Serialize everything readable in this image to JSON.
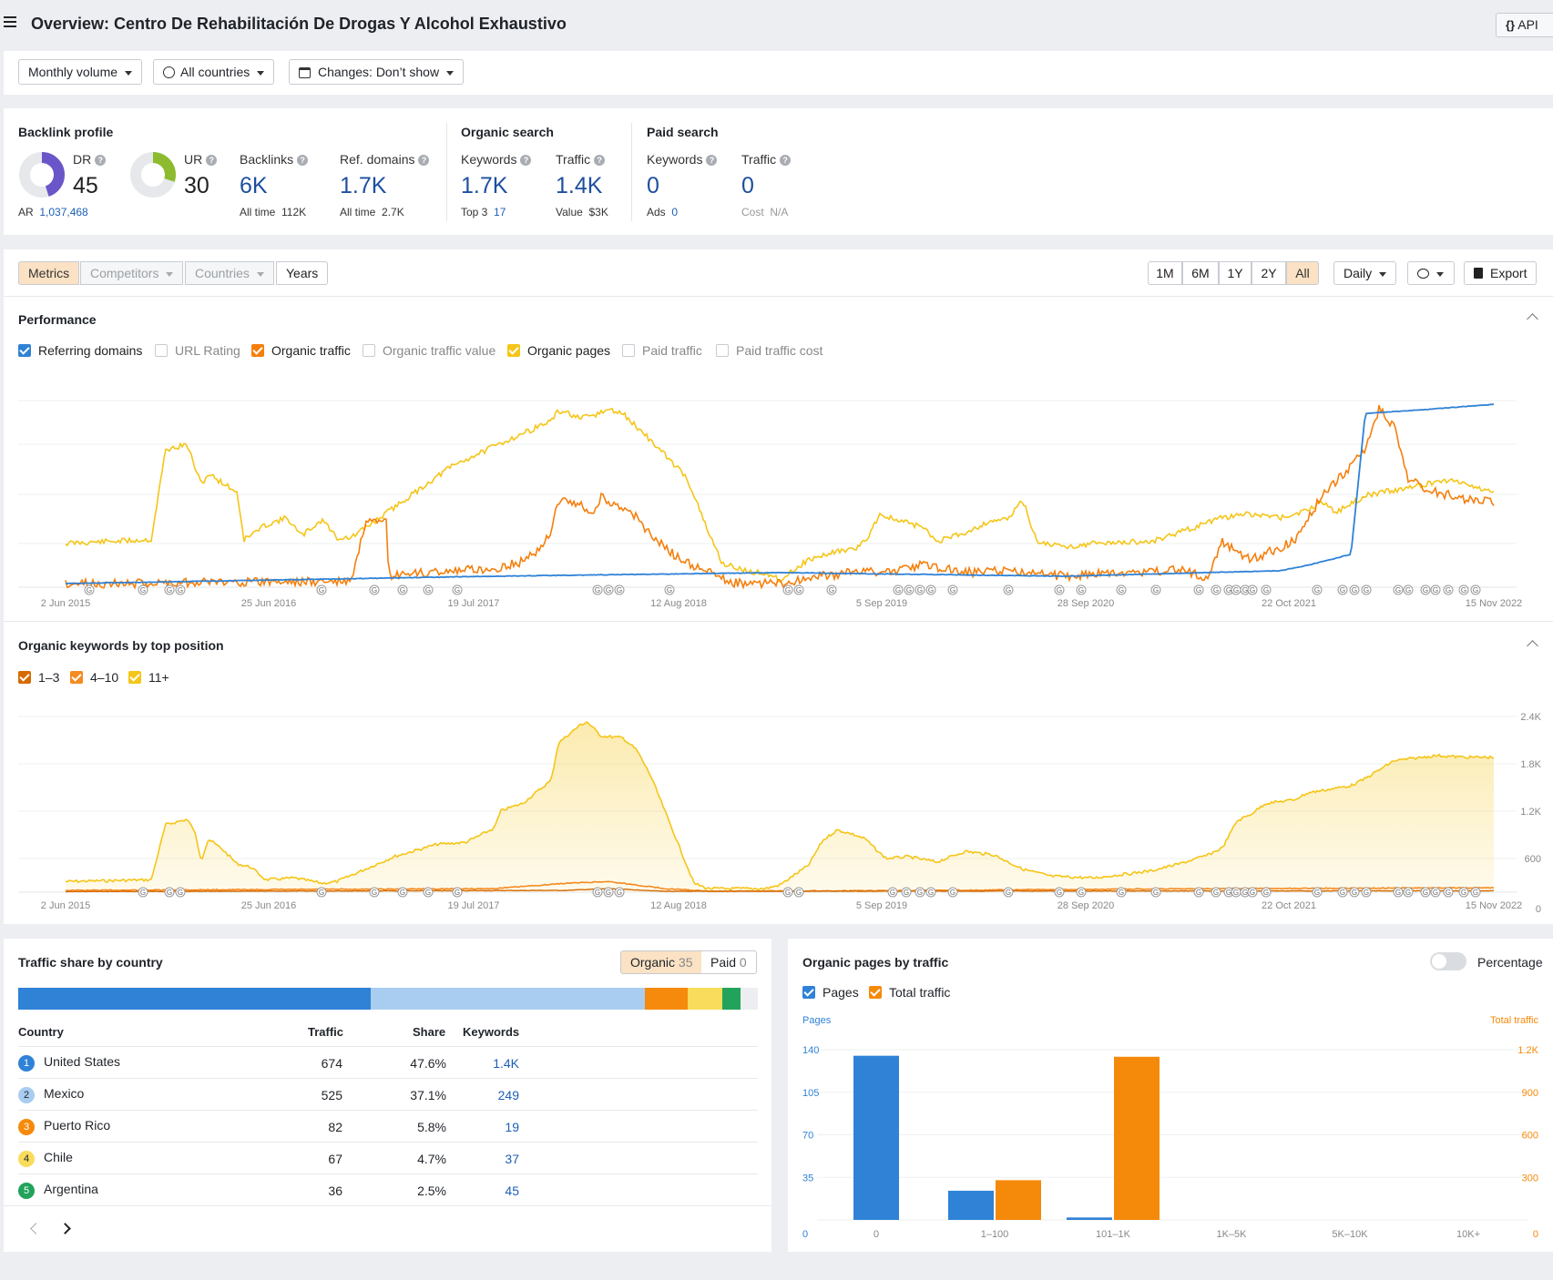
{
  "header": {
    "title": "Overview: Centro De Rehabilitación De Drogas Y Alcohol Exhaustivo",
    "api_label": "API"
  },
  "filters": {
    "volume": "Monthly volume",
    "countries": "All countries",
    "changes": "Changes: Don’t show"
  },
  "backlink_profile": {
    "title": "Backlink profile",
    "dr_label": "DR",
    "dr_value": "45",
    "dr_fill": 0.45,
    "ar_label": "AR",
    "ar_value": "1,037,468",
    "ur_label": "UR",
    "ur_value": "30",
    "ur_fill": 0.3,
    "backlinks_label": "Backlinks",
    "backlinks_value": "6K",
    "backlinks_alltime_label": "All time",
    "backlinks_alltime": "112K",
    "refdomains_label": "Ref. domains",
    "refdomains_value": "1.7K",
    "refdomains_alltime_label": "All time",
    "refdomains_alltime": "2.7K"
  },
  "organic_search": {
    "title": "Organic search",
    "keywords_label": "Keywords",
    "keywords_value": "1.7K",
    "top3_label": "Top 3",
    "top3_value": "17",
    "traffic_label": "Traffic",
    "traffic_value": "1.4K",
    "value_label": "Value",
    "value_value": "$3K"
  },
  "paid_search": {
    "title": "Paid search",
    "keywords_label": "Keywords",
    "keywords_value": "0",
    "ads_label": "Ads",
    "ads_value": "0",
    "traffic_label": "Traffic",
    "traffic_value": "0",
    "cost_label": "Cost",
    "cost_value": "N/A"
  },
  "tabs": {
    "metrics": "Metrics",
    "competitors": "Competitors",
    "countries": "Countries",
    "years": "Years",
    "ranges": [
      "1M",
      "6M",
      "1Y",
      "2Y",
      "All"
    ],
    "active_range": "All",
    "interval": "Daily",
    "export": "Export"
  },
  "performance": {
    "title": "Performance",
    "legend": [
      {
        "label": "Referring domains",
        "checked": true,
        "color": "#2f82d6"
      },
      {
        "label": "URL Rating",
        "checked": false,
        "color": ""
      },
      {
        "label": "Organic traffic",
        "checked": true,
        "color": "#f57f0c"
      },
      {
        "label": "Organic traffic value",
        "checked": false,
        "color": ""
      },
      {
        "label": "Organic pages",
        "checked": true,
        "color": "#f5c518"
      },
      {
        "label": "Paid traffic",
        "checked": false,
        "color": ""
      },
      {
        "label": "Paid traffic cost",
        "checked": false,
        "color": ""
      }
    ],
    "x_ticks": [
      "2 Jun 2015",
      "25 Jun 2016",
      "19 Jul 2017",
      "12 Aug 2018",
      "5 Sep 2019",
      "28 Sep 2020",
      "22 Oct 2021",
      "15 Nov 2022"
    ]
  },
  "keywords_chart": {
    "title": "Organic keywords by top position",
    "legend": [
      {
        "label": "1–3",
        "color": "#d66a00"
      },
      {
        "label": "4–10",
        "color": "#f58a1f"
      },
      {
        "label": "11+",
        "color": "#f5c518"
      }
    ],
    "y_ticks": [
      "2.4K",
      "1.8K",
      "1.2K",
      "600",
      "0"
    ],
    "x_ticks": [
      "2 Jun 2015",
      "25 Jun 2016",
      "19 Jul 2017",
      "12 Aug 2018",
      "5 Sep 2019",
      "28 Sep 2020",
      "22 Oct 2021",
      "15 Nov 2022"
    ]
  },
  "traffic_share": {
    "title": "Traffic share by country",
    "organic_label": "Organic",
    "organic_count": "35",
    "paid_label": "Paid",
    "paid_count": "0",
    "columns": [
      "Country",
      "Traffic",
      "Share",
      "Keywords"
    ],
    "rows": [
      {
        "rank": "1",
        "country": "United States",
        "traffic": "674",
        "share": "47.6%",
        "keywords": "1.4K",
        "color": "#2f82d6",
        "fraction": 0.476
      },
      {
        "rank": "2",
        "country": "Mexico",
        "traffic": "525",
        "share": "37.1%",
        "keywords": "249",
        "color": "#a9cdf0",
        "fraction": 0.371
      },
      {
        "rank": "3",
        "country": "Puerto Rico",
        "traffic": "82",
        "share": "5.8%",
        "keywords": "19",
        "color": "#f58a0c",
        "fraction": 0.058
      },
      {
        "rank": "4",
        "country": "Chile",
        "traffic": "67",
        "share": "4.7%",
        "keywords": "37",
        "color": "#f9dc5c",
        "fraction": 0.047
      },
      {
        "rank": "5",
        "country": "Argentina",
        "traffic": "36",
        "share": "2.5%",
        "keywords": "45",
        "color": "#22a35b",
        "fraction": 0.025
      }
    ]
  },
  "organic_pages": {
    "title": "Organic pages by traffic",
    "percentage_label": "Percentage",
    "legend_pages": "Pages",
    "legend_traffic": "Total traffic",
    "left_axis_title": "Pages",
    "right_axis_title": "Total traffic",
    "left_ticks": [
      "140",
      "105",
      "70",
      "35",
      "0"
    ],
    "right_ticks": [
      "1.2K",
      "900",
      "600",
      "300",
      "0"
    ]
  },
  "chart_data": {
    "type": "bar",
    "categories": [
      "0",
      "1–100",
      "101–1K",
      "1K–5K",
      "5K–10K",
      "10K+"
    ],
    "series": [
      {
        "name": "Pages",
        "values": [
          135,
          24,
          2,
          0,
          0,
          0
        ],
        "color": "#2f82d6",
        "axis": "left"
      },
      {
        "name": "Total traffic",
        "values": [
          0,
          280,
          1150,
          0,
          0,
          0
        ],
        "color": "#f5890a",
        "axis": "right"
      }
    ],
    "ylim_left": [
      0,
      140
    ],
    "ylim_right": [
      0,
      1200
    ]
  }
}
